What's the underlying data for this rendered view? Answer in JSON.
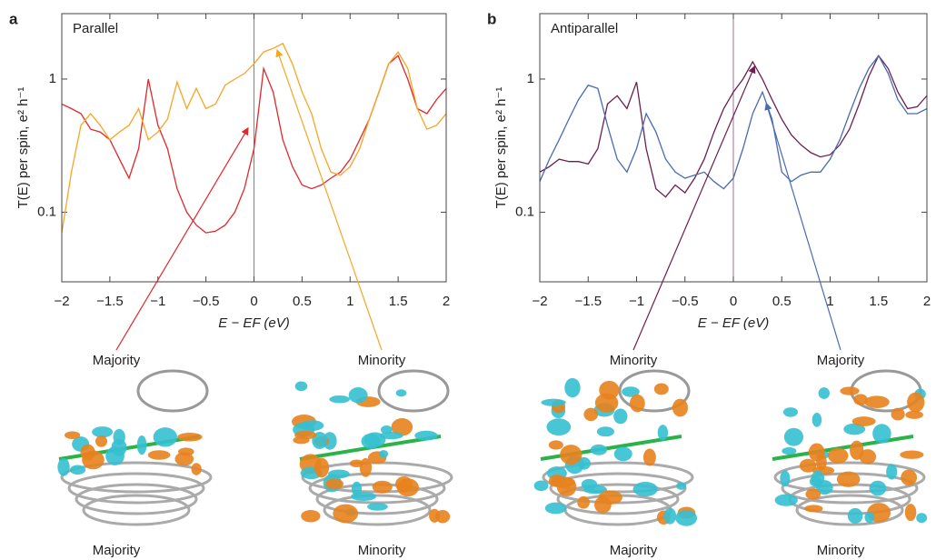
{
  "chart_data": [
    {
      "type": "line",
      "panel": "a",
      "title": "Parallel",
      "x_label": "E − EF (eV)",
      "y_label": "T(E) per spin, e² h⁻¹",
      "log_y": true,
      "xlim": [
        -2,
        2
      ],
      "ylim": [
        0.03,
        3.1
      ],
      "xticks": [
        {
          "value": -2,
          "label": "−2"
        },
        {
          "value": -1.5,
          "label": "−1.5"
        },
        {
          "value": -1,
          "label": "−1"
        },
        {
          "value": -0.5,
          "label": "−0.5"
        },
        0,
        0.5,
        1,
        1.5,
        2
      ],
      "yticks": [
        0.1,
        1
      ],
      "vline": 0,
      "vline_color": "#a07090",
      "x": [
        -2,
        -1.9,
        -1.8,
        -1.7,
        -1.6,
        -1.5,
        -1.4,
        -1.3,
        -1.2,
        -1.1,
        -1,
        -0.9,
        -0.8,
        -0.7,
        -0.6,
        -0.5,
        -0.4,
        -0.3,
        -0.2,
        -0.1,
        0,
        0.1,
        0.2,
        0.3,
        0.4,
        0.5,
        0.6,
        0.7,
        0.8,
        0.9,
        1,
        1.1,
        1.2,
        1.3,
        1.4,
        1.5,
        1.6,
        1.7,
        1.8,
        1.9,
        2
      ],
      "series": [
        {
          "name": "Majority",
          "color": "#e0282c",
          "values": [
            0.65,
            0.6,
            0.55,
            0.42,
            0.4,
            0.35,
            0.25,
            0.18,
            0.3,
            1.0,
            0.45,
            0.3,
            0.15,
            0.1,
            0.08,
            0.07,
            0.072,
            0.08,
            0.1,
            0.15,
            0.3,
            1.2,
            0.8,
            0.35,
            0.22,
            0.16,
            0.15,
            0.16,
            0.18,
            0.2,
            0.25,
            0.35,
            0.5,
            0.8,
            1.3,
            1.5,
            1.0,
            0.6,
            0.55,
            0.7,
            0.85
          ]
        },
        {
          "name": "Minority",
          "color": "#f5a623",
          "values": [
            0.07,
            0.2,
            0.45,
            0.55,
            0.45,
            0.35,
            0.4,
            0.45,
            0.6,
            0.35,
            0.4,
            0.5,
            0.95,
            0.6,
            0.85,
            0.6,
            0.65,
            0.9,
            1.0,
            1.1,
            1.3,
            1.6,
            1.7,
            1.85,
            1.3,
            0.8,
            0.55,
            0.3,
            0.2,
            0.19,
            0.22,
            0.3,
            0.5,
            0.8,
            1.3,
            1.6,
            1.2,
            0.6,
            0.42,
            0.45,
            0.55
          ]
        }
      ],
      "annotations": [
        {
          "text": "Majority",
          "color": "#e0282c",
          "x": -0.06,
          "y": 0.43
        },
        {
          "text": "Minority",
          "color": "#f5a623",
          "x": 0.24,
          "y": 1.66
        }
      ],
      "structure_labels": [
        {
          "text": "Majority",
          "color": "#e0282c"
        },
        {
          "text": "Minority",
          "color": "#f5a623"
        }
      ]
    },
    {
      "type": "line",
      "panel": "b",
      "title": "Antiparallel",
      "x_label": "E − EF (eV)",
      "y_label": "T(E) per spin, e² h⁻¹",
      "log_y": true,
      "xlim": [
        -2,
        2
      ],
      "ylim": [
        0.03,
        3.1
      ],
      "xticks": [
        {
          "value": -2,
          "label": "−2"
        },
        {
          "value": -1.5,
          "label": "−1.5"
        },
        {
          "value": -1,
          "label": "−1"
        },
        {
          "value": -0.5,
          "label": "−0.5"
        },
        0,
        0.5,
        1,
        1.5,
        2
      ],
      "yticks": [
        0.1,
        1
      ],
      "vline": 0,
      "vline_color": "#a07090",
      "x": [
        -2,
        -1.9,
        -1.8,
        -1.7,
        -1.6,
        -1.5,
        -1.4,
        -1.3,
        -1.2,
        -1.1,
        -1,
        -0.9,
        -0.8,
        -0.7,
        -0.6,
        -0.5,
        -0.4,
        -0.3,
        -0.2,
        -0.1,
        0,
        0.1,
        0.2,
        0.3,
        0.4,
        0.5,
        0.6,
        0.7,
        0.8,
        0.9,
        1,
        1.1,
        1.2,
        1.3,
        1.4,
        1.5,
        1.6,
        1.7,
        1.8,
        1.9,
        2
      ],
      "series": [
        {
          "name": "Minority",
          "color": "#6b1f4f",
          "values": [
            0.2,
            0.22,
            0.25,
            0.24,
            0.24,
            0.23,
            0.3,
            0.65,
            0.75,
            0.6,
            0.95,
            0.3,
            0.15,
            0.13,
            0.16,
            0.14,
            0.18,
            0.25,
            0.4,
            0.6,
            0.8,
            1.0,
            1.35,
            1.0,
            0.7,
            0.5,
            0.38,
            0.32,
            0.28,
            0.26,
            0.27,
            0.32,
            0.42,
            0.65,
            1.05,
            1.5,
            1.2,
            0.8,
            0.6,
            0.62,
            0.75
          ]
        },
        {
          "name": "Majority",
          "color": "#4a6bb0",
          "values": [
            0.17,
            0.25,
            0.35,
            0.5,
            0.7,
            0.9,
            0.85,
            0.45,
            0.25,
            0.2,
            0.3,
            0.55,
            0.4,
            0.25,
            0.2,
            0.18,
            0.19,
            0.2,
            0.17,
            0.15,
            0.18,
            0.3,
            0.55,
            0.8,
            0.5,
            0.2,
            0.17,
            0.19,
            0.2,
            0.2,
            0.25,
            0.35,
            0.55,
            0.85,
            1.2,
            1.5,
            1.1,
            0.7,
            0.55,
            0.55,
            0.6
          ]
        }
      ],
      "annotations": [
        {
          "text": "Minority",
          "color": "#6b1f4f",
          "x": 0.22,
          "y": 1.25
        },
        {
          "text": "Majority",
          "color": "#4a6bb0",
          "x": 0.34,
          "y": 0.66
        }
      ],
      "structure_labels": [
        {
          "text": "Majority",
          "color": "#6b1f4f"
        },
        {
          "text": "Minority",
          "color": "#4a6bb0"
        }
      ]
    }
  ]
}
